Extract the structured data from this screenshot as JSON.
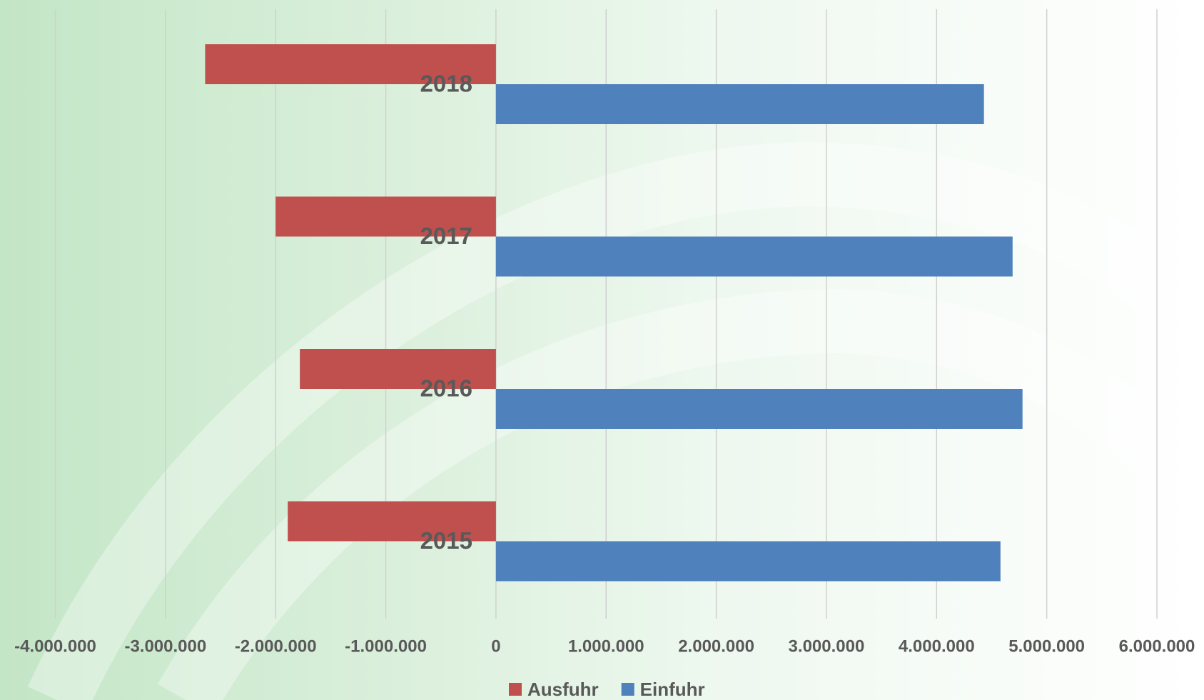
{
  "chart_data": {
    "type": "hbar",
    "categories": [
      "2015",
      "2016",
      "2017",
      "2018"
    ],
    "series": [
      {
        "name": "Ausfuhr",
        "color": "#c0504d",
        "values": [
          -1890000,
          -1780000,
          -2000000,
          -2640000
        ]
      },
      {
        "name": "Einfuhr",
        "color": "#4f81bd",
        "values": [
          4580000,
          4780000,
          4690000,
          4430000
        ]
      }
    ],
    "xlim": [
      -4000000,
      6000000
    ],
    "xticks": [
      {
        "value": -4000000,
        "label": "-4.000.000"
      },
      {
        "value": -3000000,
        "label": "-3.000.000"
      },
      {
        "value": -2000000,
        "label": "-2.000.000"
      },
      {
        "value": -1000000,
        "label": "-1.000.000"
      },
      0,
      {
        "value": 1000000,
        "label": "1.000.000"
      },
      {
        "value": 2000000,
        "label": "2.000.000"
      },
      {
        "value": 3000000,
        "label": "3.000.000"
      },
      {
        "value": 4000000,
        "label": "4.000.000"
      },
      {
        "value": 5000000,
        "label": "5.000.000"
      },
      {
        "value": 6000000,
        "label": "6.000.000"
      }
    ],
    "grid": true,
    "legend": "bottom"
  }
}
